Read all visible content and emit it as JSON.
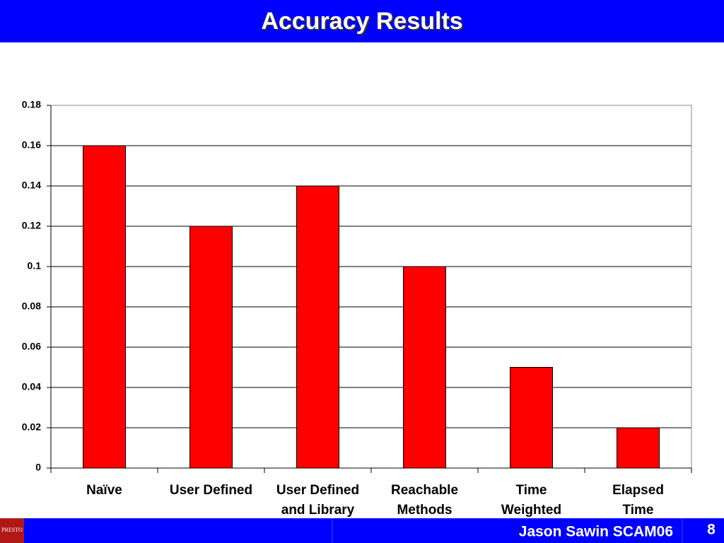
{
  "chart_data": {
    "type": "bar",
    "title": "Accuracy Results",
    "categories": [
      "Naïve",
      "User Defined",
      "User Defined\nand Library",
      "Reachable\nMethods",
      "Time\nWeighted",
      "Elapsed\nTime"
    ],
    "values": [
      0.16,
      0.12,
      0.14,
      0.1,
      0.05,
      0.02
    ],
    "color": "#ff0000",
    "ylim": [
      0,
      0.18
    ],
    "yticks": [
      0,
      0.02,
      0.04,
      0.06,
      0.08,
      0.1,
      0.12,
      0.14,
      0.16,
      0.18
    ],
    "grid": true
  },
  "slide": {
    "footer": "Jason Sawin SCAM06",
    "page": "8",
    "logo": "PRESTO"
  }
}
